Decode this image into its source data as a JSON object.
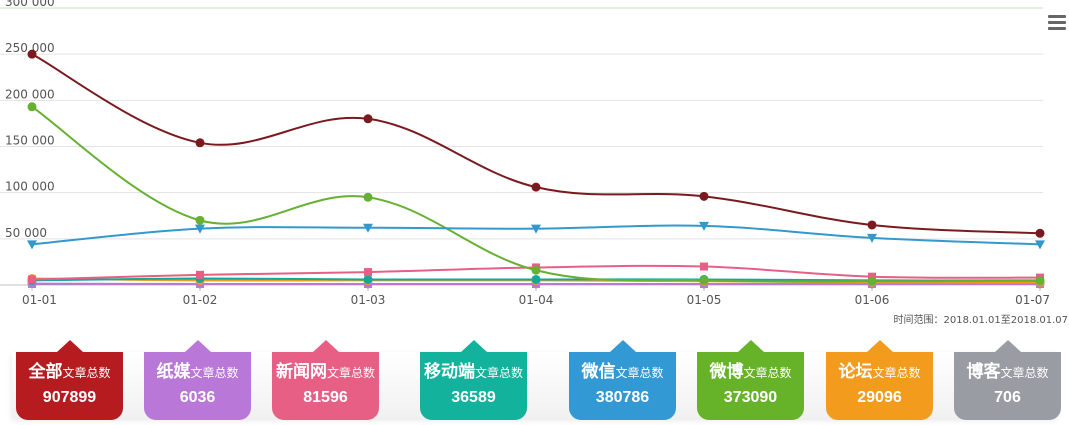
{
  "chart_data": {
    "type": "line",
    "categories": [
      "01-01",
      "01-02",
      "01-03",
      "01-04",
      "01-05",
      "01-06",
      "01-07"
    ],
    "ylim": [
      0,
      300000
    ],
    "yticks": [
      "300 000",
      "250 000",
      "200 000",
      "150 000",
      "100 000",
      "50 000"
    ],
    "ytick_values": [
      300000,
      250000,
      200000,
      150000,
      100000,
      50000
    ],
    "grid": true,
    "series": [
      {
        "key": "all",
        "color": "#7a1a1e",
        "marker": "circle",
        "values": [
          250000,
          154000,
          180000,
          106000,
          96000,
          65000,
          56000
        ]
      },
      {
        "key": "weixin",
        "color": "#3399cc",
        "marker": "triangle-down",
        "values": [
          44000,
          61000,
          62000,
          61000,
          64000,
          51000,
          44000
        ]
      },
      {
        "key": "weibo",
        "color": "#66b032",
        "marker": "circle",
        "values": [
          193000,
          70000,
          95000,
          16000,
          5000,
          4000,
          4500
        ]
      },
      {
        "key": "news",
        "color": "#e85f86",
        "marker": "square",
        "values": [
          6000,
          11000,
          14000,
          19000,
          20000,
          9000,
          8000
        ]
      },
      {
        "key": "mobile",
        "color": "#13a89e",
        "marker": "circle",
        "values": [
          5000,
          7000,
          6000,
          6000,
          6000,
          5000,
          5000
        ]
      },
      {
        "key": "forum",
        "color": "#f29b1d",
        "marker": "circle",
        "values": [
          7000,
          5000,
          5000,
          5000,
          4000,
          3000,
          3000
        ]
      },
      {
        "key": "print",
        "color": "#b977d8",
        "marker": "circle",
        "values": [
          1500,
          1000,
          1000,
          1000,
          800,
          700,
          600
        ]
      },
      {
        "key": "blog",
        "color": "#999999",
        "marker": "square",
        "values": [
          500,
          300,
          300,
          300,
          300,
          300,
          300
        ]
      }
    ],
    "annotation": "时间范围：2018.01.01至2018.01.07"
  },
  "cards": [
    {
      "name": "全部",
      "label": "文章总数",
      "value": "907899",
      "color": "#b51b1f"
    },
    {
      "name": "纸媒",
      "label": "文章总数",
      "value": "6036",
      "color": "#b977d8"
    },
    {
      "name": "新闻网",
      "label": "文章总数",
      "value": "81596",
      "color": "#e85f86"
    },
    {
      "name": "移动端",
      "label": "文章总数",
      "value": "36589",
      "color": "#13b29c"
    },
    {
      "name": "微信",
      "label": "文章总数",
      "value": "380786",
      "color": "#3399d4"
    },
    {
      "name": "微博",
      "label": "文章总数",
      "value": "373090",
      "color": "#66b32a"
    },
    {
      "name": "论坛",
      "label": "文章总数",
      "value": "29096",
      "color": "#f29b1d"
    },
    {
      "name": "博客",
      "label": "文章总数",
      "value": "706",
      "color": "#999ca3"
    }
  ]
}
